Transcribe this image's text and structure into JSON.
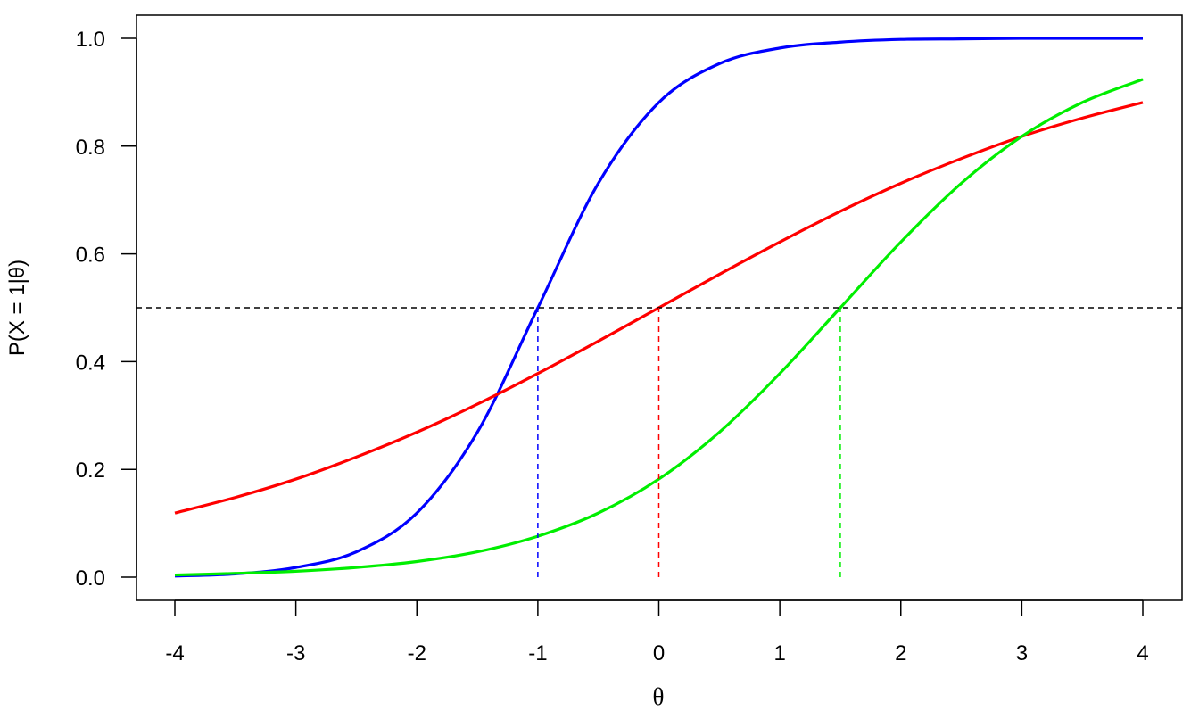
{
  "chart_data": {
    "type": "line",
    "title": "",
    "xlabel": "θ",
    "ylabel": "P(X = 1|θ)",
    "xlim": [
      -4,
      4
    ],
    "ylim": [
      0,
      1
    ],
    "x_ticks": [
      "-4",
      "-3",
      "-2",
      "-1",
      "0",
      "1",
      "2",
      "3",
      "4"
    ],
    "y_ticks": [
      "0.0",
      "0.2",
      "0.4",
      "0.6",
      "0.8",
      "1.0"
    ],
    "grid": false,
    "legend": "none",
    "series": [
      {
        "color": "#0000ff",
        "points": [
          [
            -4,
            0.002
          ],
          [
            -3.5,
            0.006
          ],
          [
            -3,
            0.018
          ],
          [
            -2.5,
            0.047
          ],
          [
            -2,
            0.119
          ],
          [
            -1.5,
            0.269
          ],
          [
            -1,
            0.5
          ],
          [
            -0.5,
            0.731
          ],
          [
            0,
            0.881
          ],
          [
            0.5,
            0.953
          ],
          [
            1,
            0.982
          ],
          [
            1.5,
            0.993
          ],
          [
            2,
            0.998
          ],
          [
            2.5,
            0.999
          ],
          [
            3,
            1.0
          ],
          [
            3.5,
            1.0
          ],
          [
            4,
            1.0
          ]
        ],
        "threshold_x": -1
      },
      {
        "color": "#ff0000",
        "points": [
          [
            -4,
            0.119
          ],
          [
            -3.5,
            0.148
          ],
          [
            -3,
            0.182
          ],
          [
            -2.5,
            0.223
          ],
          [
            -2,
            0.269
          ],
          [
            -1.5,
            0.321
          ],
          [
            -1,
            0.378
          ],
          [
            -0.5,
            0.438
          ],
          [
            0,
            0.5
          ],
          [
            0.5,
            0.562
          ],
          [
            1,
            0.622
          ],
          [
            1.5,
            0.679
          ],
          [
            2,
            0.731
          ],
          [
            2.5,
            0.777
          ],
          [
            3,
            0.818
          ],
          [
            3.5,
            0.852
          ],
          [
            4,
            0.881
          ]
        ],
        "threshold_x": 0
      },
      {
        "color": "#00ee00",
        "points": [
          [
            -4,
            0.004
          ],
          [
            -3.5,
            0.007
          ],
          [
            -3,
            0.011
          ],
          [
            -2.5,
            0.018
          ],
          [
            -2,
            0.029
          ],
          [
            -1.5,
            0.047
          ],
          [
            -1,
            0.076
          ],
          [
            -0.5,
            0.119
          ],
          [
            0,
            0.182
          ],
          [
            0.5,
            0.269
          ],
          [
            1,
            0.378
          ],
          [
            1.5,
            0.5
          ],
          [
            2,
            0.622
          ],
          [
            2.5,
            0.731
          ],
          [
            3,
            0.818
          ],
          [
            3.5,
            0.881
          ],
          [
            4,
            0.924
          ]
        ],
        "threshold_x": 1.5
      }
    ],
    "reference_line_y": 0.5
  }
}
